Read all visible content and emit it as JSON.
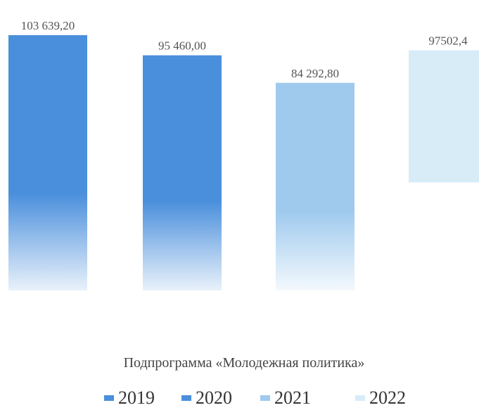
{
  "chart_data": {
    "type": "bar",
    "categories": [
      "Подпрограмма «Молодежная политика»"
    ],
    "series": [
      {
        "name": "2019",
        "values": [
          103639.2
        ],
        "label": "103 639,20",
        "color": "#4a8fdc"
      },
      {
        "name": "2020",
        "values": [
          95460.0
        ],
        "label": "95 460,00",
        "color": "#4a8fdc"
      },
      {
        "name": "2021",
        "values": [
          84292.8
        ],
        "label": "84 292,80",
        "color": "#9fcaee"
      },
      {
        "name": "2022",
        "values": [
          97502.4
        ],
        "label": "97502,4",
        "color": "#d8ecf8"
      }
    ],
    "ylim": [
      0,
      103639.2
    ],
    "grid": false,
    "legend_position": "bottom"
  }
}
